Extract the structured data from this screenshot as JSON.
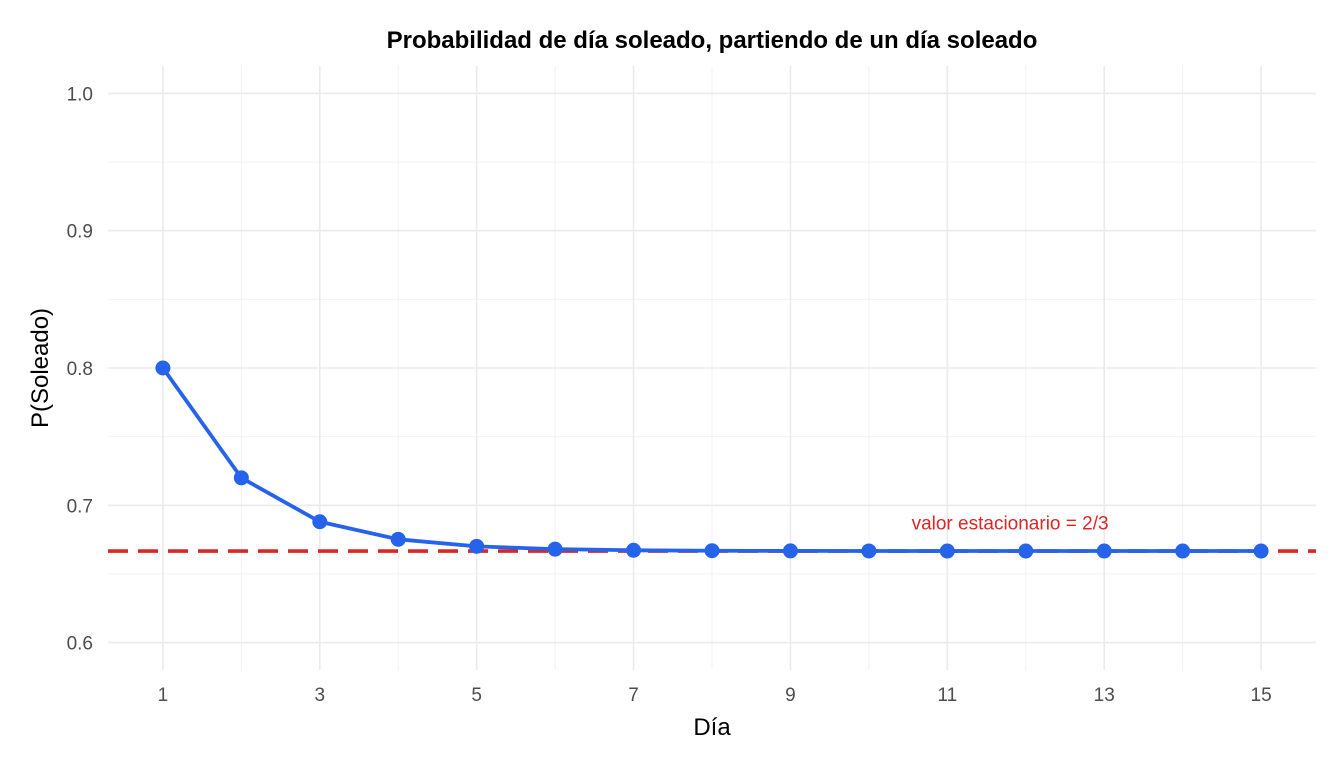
{
  "chart_data": {
    "type": "line",
    "title": "Probabilidad de día soleado, partiendo de un día soleado",
    "xlabel": "Día",
    "ylabel": "P(Soleado)",
    "xlim": [
      0.3,
      15.7
    ],
    "ylim": [
      0.58,
      1.02
    ],
    "x_ticks": [
      1,
      3,
      5,
      7,
      9,
      11,
      13,
      15
    ],
    "x_tick_labels": [
      "1",
      "3",
      "5",
      "7",
      "9",
      "11",
      "13",
      "15"
    ],
    "y_ticks": [
      0.6,
      0.7,
      0.8,
      0.9,
      1.0
    ],
    "y_tick_labels": [
      "0.6",
      "0.7",
      "0.8",
      "0.9",
      "1.0"
    ],
    "grid": true,
    "series": [
      {
        "x": [
          1,
          2,
          3,
          4,
          5,
          6,
          7,
          8,
          9,
          10,
          11,
          12,
          13,
          14,
          15
        ],
        "values": [
          0.8,
          0.72,
          0.688,
          0.6752,
          0.67008,
          0.668032,
          0.667213,
          0.666885,
          0.666754,
          0.666702,
          0.666681,
          0.666672,
          0.666669,
          0.666668,
          0.666667
        ],
        "color": "#2563eb"
      }
    ],
    "reference_line": {
      "y": 0.6666667,
      "color": "#dc2626",
      "style": "dashed",
      "label": "valor estacionario = 2/3",
      "label_x": 11.8,
      "label_y": 0.6825
    }
  }
}
